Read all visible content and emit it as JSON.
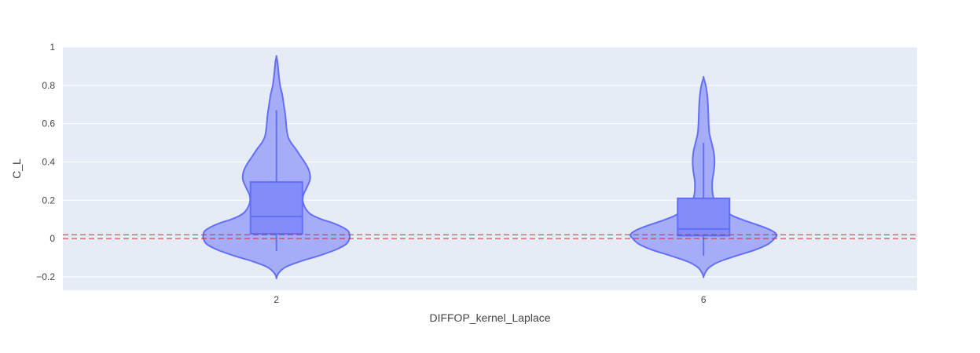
{
  "chart_data": {
    "type": "violin",
    "xlabel": "DIFFOP_kernel_Laplace",
    "ylabel": "C_L",
    "categories": [
      "2",
      "6"
    ],
    "ylim": [
      -0.27,
      1.0
    ],
    "yticks": [
      -0.2,
      0,
      0.2,
      0.4,
      0.6,
      0.8,
      1
    ],
    "ytick_labels": [
      "−0.2",
      "0",
      "0.2",
      "0.4",
      "0.6",
      "0.8",
      "1"
    ],
    "grid": true,
    "colors": {
      "plot_bg": "#E5ECF6",
      "grid": "#FFFFFF",
      "violin_fill": "#A2AAF8",
      "violin_line": "#636EFA",
      "box_fill": "#838DF9",
      "reference_line": "#D62728"
    },
    "reference_lines": [
      0,
      0.02
    ],
    "violins": [
      {
        "category": "2",
        "box": {
          "q1": 0.025,
          "median": 0.115,
          "q3": 0.295,
          "whisker_low": -0.065,
          "whisker_high": 0.67
        },
        "y_min": -0.205,
        "y_max": 0.95,
        "profile": [
          [
            -0.205,
            0.0
          ],
          [
            -0.18,
            0.03
          ],
          [
            -0.15,
            0.12
          ],
          [
            -0.12,
            0.32
          ],
          [
            -0.09,
            0.58
          ],
          [
            -0.06,
            0.8
          ],
          [
            -0.03,
            0.95
          ],
          [
            0.0,
            1.0
          ],
          [
            0.02,
            1.0
          ],
          [
            0.04,
            0.98
          ],
          [
            0.06,
            0.9
          ],
          [
            0.08,
            0.78
          ],
          [
            0.1,
            0.62
          ],
          [
            0.12,
            0.5
          ],
          [
            0.14,
            0.43
          ],
          [
            0.17,
            0.38
          ],
          [
            0.2,
            0.36
          ],
          [
            0.23,
            0.37
          ],
          [
            0.27,
            0.42
          ],
          [
            0.31,
            0.46
          ],
          [
            0.35,
            0.45
          ],
          [
            0.39,
            0.4
          ],
          [
            0.43,
            0.33
          ],
          [
            0.47,
            0.26
          ],
          [
            0.5,
            0.2
          ],
          [
            0.53,
            0.16
          ],
          [
            0.57,
            0.14
          ],
          [
            0.61,
            0.13
          ],
          [
            0.65,
            0.12
          ],
          [
            0.7,
            0.1
          ],
          [
            0.75,
            0.08
          ],
          [
            0.8,
            0.05
          ],
          [
            0.86,
            0.03
          ],
          [
            0.92,
            0.015
          ],
          [
            0.95,
            0.0
          ]
        ]
      },
      {
        "category": "6",
        "box": {
          "q1": 0.015,
          "median": 0.05,
          "q3": 0.21,
          "whisker_low": -0.09,
          "whisker_high": 0.5
        },
        "y_min": -0.2,
        "y_max": 0.84,
        "profile": [
          [
            -0.2,
            0.0
          ],
          [
            -0.18,
            0.02
          ],
          [
            -0.15,
            0.08
          ],
          [
            -0.12,
            0.22
          ],
          [
            -0.09,
            0.45
          ],
          [
            -0.06,
            0.7
          ],
          [
            -0.03,
            0.88
          ],
          [
            0.0,
            0.97
          ],
          [
            0.02,
            1.0
          ],
          [
            0.04,
            0.94
          ],
          [
            0.06,
            0.82
          ],
          [
            0.08,
            0.67
          ],
          [
            0.1,
            0.52
          ],
          [
            0.12,
            0.39
          ],
          [
            0.15,
            0.28
          ],
          [
            0.18,
            0.2
          ],
          [
            0.21,
            0.14
          ],
          [
            0.25,
            0.12
          ],
          [
            0.3,
            0.12
          ],
          [
            0.35,
            0.14
          ],
          [
            0.4,
            0.15
          ],
          [
            0.45,
            0.14
          ],
          [
            0.5,
            0.11
          ],
          [
            0.55,
            0.08
          ],
          [
            0.6,
            0.07
          ],
          [
            0.65,
            0.065
          ],
          [
            0.7,
            0.06
          ],
          [
            0.75,
            0.05
          ],
          [
            0.8,
            0.03
          ],
          [
            0.84,
            0.0
          ]
        ]
      }
    ]
  }
}
